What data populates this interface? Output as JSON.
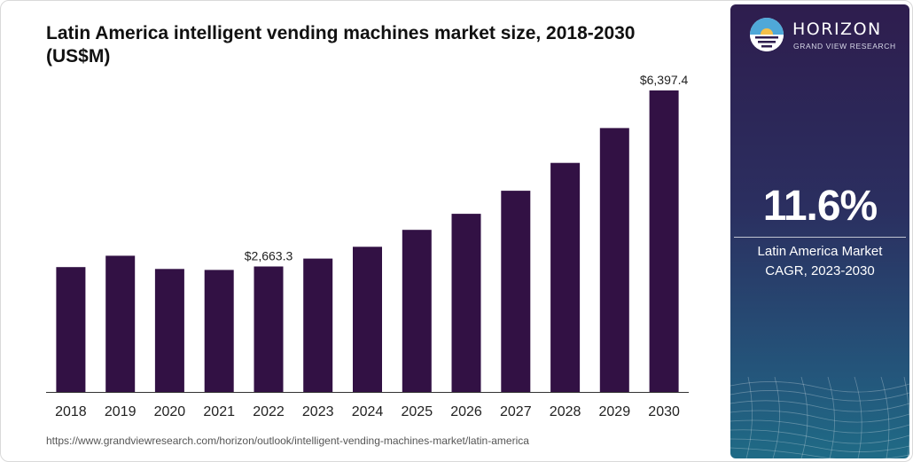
{
  "title": "Latin America intelligent vending machines market size, 2018-2030 (US$M)",
  "source_url": "https://www.grandviewresearch.com/horizon/outlook/intelligent-vending-machines-market/latin-america",
  "brand": {
    "name": "HORIZON",
    "subtitle": "GRAND VIEW RESEARCH"
  },
  "cagr": {
    "value": "11.6%",
    "label_line1": "Latin America Market",
    "label_line2": "CAGR, 2023-2030"
  },
  "colors": {
    "bar": "#321144",
    "panel_top": "#2e1d4e",
    "panel_bottom": "#1f6b86",
    "text": "#111111"
  },
  "chart_data": {
    "type": "bar",
    "title": "Latin America intelligent vending machines market size, 2018-2030 (US$M)",
    "categories": [
      "2018",
      "2019",
      "2020",
      "2021",
      "2022",
      "2023",
      "2024",
      "2025",
      "2026",
      "2027",
      "2028",
      "2029",
      "2030"
    ],
    "values": [
      2650,
      2890,
      2610,
      2590,
      2663.3,
      2830,
      3080,
      3440,
      3780,
      4270,
      4860,
      5600,
      6397.4
    ],
    "data_labels": [
      {
        "category": "2022",
        "text": "$2,663.3"
      },
      {
        "category": "2030",
        "text": "$6,397.4"
      }
    ],
    "ylim": [
      0,
      6397.4
    ],
    "xlabel": "",
    "ylabel": "",
    "grid": false,
    "legend": "none"
  }
}
